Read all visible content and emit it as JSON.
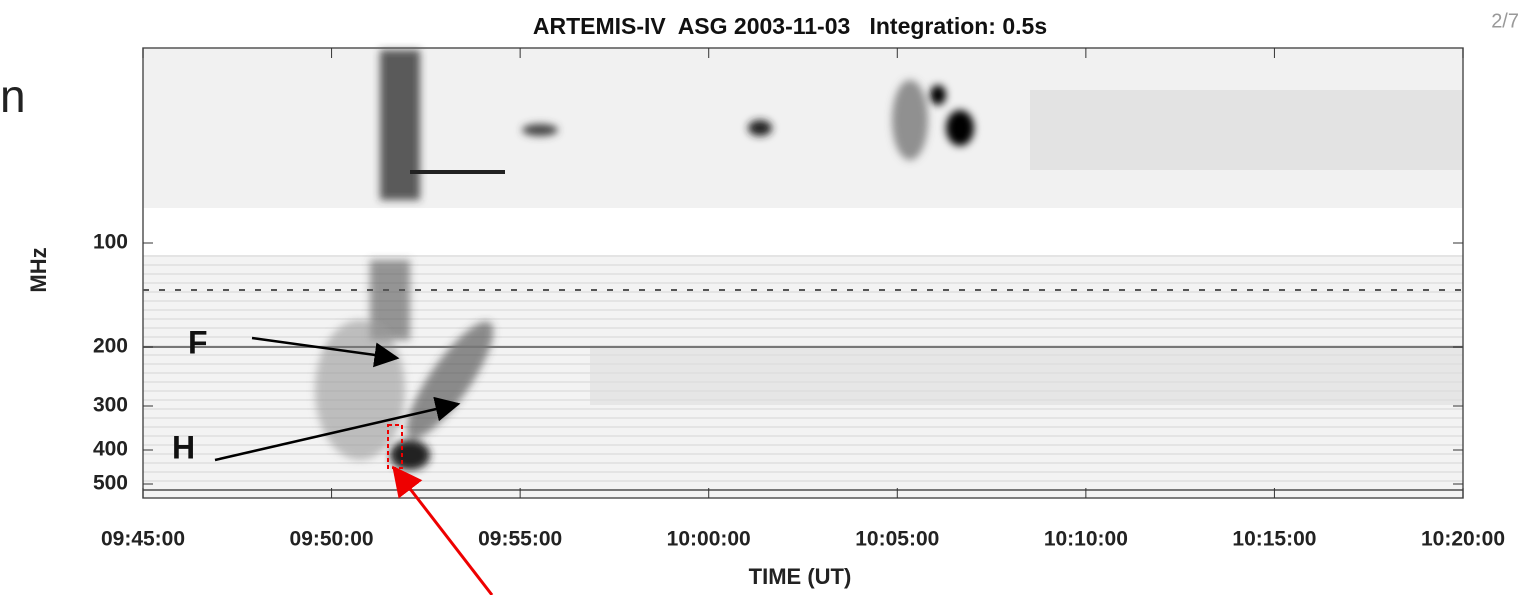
{
  "header": {
    "title": "ARTEMIS-IV  ASG 2003-11-03   Integration: 0.5s",
    "page_number": "2/7",
    "edge_text": "n"
  },
  "axes": {
    "y_label": "MHz",
    "x_label": "TIME (UT)",
    "y_ticks": [
      100,
      200,
      300,
      400,
      500
    ],
    "x_ticks": [
      "09:45:00",
      "09:50:00",
      "09:55:00",
      "10:00:00",
      "10:05:00",
      "10:10:00",
      "10:15:00",
      "10:20:00"
    ]
  },
  "annotations": [
    "F",
    "H"
  ]
}
